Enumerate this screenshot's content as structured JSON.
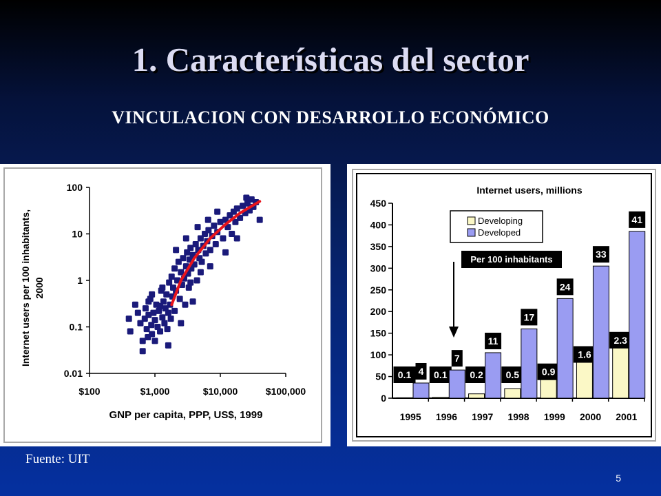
{
  "slide": {
    "title": "1. Características del sector",
    "subtitle": "VINCULACION CON DESARROLLO ECONÓMICO",
    "source": "Fuente: UIT",
    "page_number": "5"
  },
  "colors": {
    "marker": "#1a1a7a",
    "trend": "#e8141c",
    "developing": "#fbf8c6",
    "developed": "#9a9cf2",
    "frame": "#a8a8a8",
    "label_box": "#000000"
  },
  "chart_data": [
    {
      "type": "scatter",
      "xlabel": "GNP per capita, PPP, US$, 1999",
      "ylabel": "Internet users per 100 inhabitants, 2000",
      "x_scale": "log",
      "y_scale": "log",
      "xlim": [
        100,
        100000
      ],
      "ylim": [
        0.01,
        100
      ],
      "xticks": [
        {
          "value": 100,
          "label": "$100"
        },
        {
          "value": 1000,
          "label": "$1,000"
        },
        {
          "value": 10000,
          "label": "$10,000"
        },
        {
          "value": 100000,
          "label": "$100,000"
        }
      ],
      "yticks": [
        {
          "value": 100,
          "label": "100"
        },
        {
          "value": 10,
          "label": "10"
        },
        {
          "value": 1,
          "label": "1"
        },
        {
          "value": 0.1,
          "label": "0.1"
        },
        {
          "value": 0.01,
          "label": "0.01"
        }
      ],
      "points": [
        [
          420,
          0.08
        ],
        [
          500,
          0.3
        ],
        [
          550,
          0.2
        ],
        [
          600,
          0.12
        ],
        [
          650,
          0.05
        ],
        [
          700,
          0.15
        ],
        [
          720,
          0.25
        ],
        [
          750,
          0.09
        ],
        [
          780,
          0.06
        ],
        [
          800,
          0.18
        ],
        [
          850,
          0.4
        ],
        [
          880,
          0.11
        ],
        [
          900,
          0.07
        ],
        [
          950,
          0.2
        ],
        [
          1000,
          0.14
        ],
        [
          1000,
          0.05
        ],
        [
          1050,
          0.3
        ],
        [
          1100,
          0.1
        ],
        [
          1150,
          0.22
        ],
        [
          1200,
          0.08
        ],
        [
          1250,
          0.6
        ],
        [
          1300,
          0.16
        ],
        [
          1350,
          0.35
        ],
        [
          1400,
          0.12
        ],
        [
          1450,
          0.25
        ],
        [
          1500,
          0.5
        ],
        [
          1550,
          0.09
        ],
        [
          1600,
          0.2
        ],
        [
          1650,
          0.9
        ],
        [
          1700,
          0.3
        ],
        [
          1750,
          0.15
        ],
        [
          1800,
          1.2
        ],
        [
          1850,
          0.45
        ],
        [
          1900,
          0.7
        ],
        [
          2000,
          0.22
        ],
        [
          2000,
          1.8
        ],
        [
          2100,
          0.6
        ],
        [
          2200,
          1.0
        ],
        [
          2300,
          2.5
        ],
        [
          2400,
          0.4
        ],
        [
          2500,
          1.5
        ],
        [
          2600,
          0.8
        ],
        [
          2700,
          3.0
        ],
        [
          2800,
          1.1
        ],
        [
          2900,
          0.3
        ],
        [
          3000,
          2.0
        ],
        [
          3100,
          4.0
        ],
        [
          3200,
          1.4
        ],
        [
          3300,
          0.7
        ],
        [
          3400,
          2.8
        ],
        [
          3500,
          5.0
        ],
        [
          3600,
          1.8
        ],
        [
          3800,
          3.5
        ],
        [
          4000,
          2.2
        ],
        [
          4200,
          6.0
        ],
        [
          4400,
          1.0
        ],
        [
          4600,
          4.5
        ],
        [
          4800,
          3.0
        ],
        [
          5000,
          8.0
        ],
        [
          5200,
          2.5
        ],
        [
          5500,
          5.5
        ],
        [
          5800,
          10.0
        ],
        [
          6000,
          3.8
        ],
        [
          6300,
          7.0
        ],
        [
          6600,
          12.0
        ],
        [
          7000,
          4.5
        ],
        [
          7500,
          9.0
        ],
        [
          8000,
          15.0
        ],
        [
          8500,
          6.0
        ],
        [
          9000,
          11.0
        ],
        [
          10000,
          18.0
        ],
        [
          11000,
          8.0
        ],
        [
          12000,
          20.0
        ],
        [
          13000,
          14.0
        ],
        [
          14000,
          25.0
        ],
        [
          15000,
          10.0
        ],
        [
          16000,
          30.0
        ],
        [
          17000,
          18.0
        ],
        [
          18000,
          35.0
        ],
        [
          20000,
          22.0
        ],
        [
          22000,
          40.0
        ],
        [
          24000,
          28.0
        ],
        [
          26000,
          45.0
        ],
        [
          28000,
          32.0
        ],
        [
          30000,
          55.0
        ],
        [
          32000,
          38.0
        ],
        [
          35000,
          48.0
        ],
        [
          40000,
          20.0
        ],
        [
          650,
          0.03
        ],
        [
          800,
          0.35
        ],
        [
          1200,
          0.28
        ],
        [
          900,
          0.5
        ],
        [
          2500,
          0.12
        ],
        [
          3500,
          0.9
        ],
        [
          5000,
          1.5
        ],
        [
          7000,
          2.0
        ],
        [
          1600,
          0.04
        ],
        [
          400,
          0.15
        ],
        [
          1300,
          0.7
        ],
        [
          2100,
          4.5
        ],
        [
          4500,
          14.0
        ],
        [
          6500,
          20.0
        ],
        [
          9000,
          30.0
        ],
        [
          3000,
          8.0
        ],
        [
          18000,
          8.0
        ],
        [
          25000,
          60.0
        ],
        [
          12000,
          4.0
        ],
        [
          3800,
          0.35
        ]
      ],
      "trend": [
        [
          1800,
          0.3
        ],
        [
          2500,
          1.0
        ],
        [
          4000,
          3.0
        ],
        [
          7000,
          8.0
        ],
        [
          12000,
          16.0
        ],
        [
          20000,
          28.0
        ],
        [
          40000,
          50.0
        ]
      ]
    },
    {
      "type": "bar",
      "title": "Internet users, millions",
      "categories": [
        "1995",
        "1996",
        "1997",
        "1998",
        "1999",
        "2000",
        "2001"
      ],
      "series": [
        {
          "name": "Developing",
          "values": [
            1,
            2,
            10,
            22,
            45,
            85,
            118
          ],
          "labels": [
            "0.1",
            "0.1",
            "0.2",
            "0.5",
            "0.9",
            "1.6",
            "2.3"
          ]
        },
        {
          "name": "Developed",
          "values": [
            35,
            65,
            105,
            160,
            230,
            305,
            385
          ],
          "labels": [
            "4",
            "7",
            "11",
            "17",
            "24",
            "33",
            "41"
          ]
        }
      ],
      "ylim": [
        0,
        450
      ],
      "yticks": [
        0,
        50,
        100,
        150,
        200,
        250,
        300,
        350,
        400,
        450
      ],
      "annotation": "Per 100 inhabitants",
      "legend": "top-left"
    }
  ]
}
